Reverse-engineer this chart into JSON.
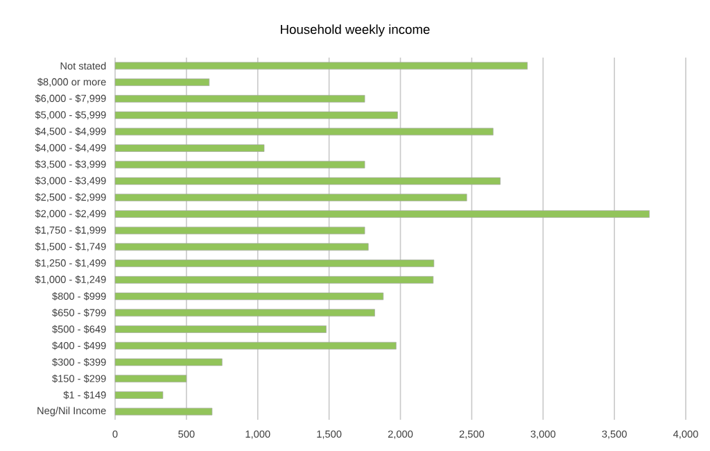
{
  "chart_data": {
    "type": "bar",
    "orientation": "horizontal",
    "title": "Household weekly income",
    "categories": [
      "Not stated",
      "$8,000 or more",
      "$6,000 - $7,999",
      "$5,000 - $5,999",
      "$4,500 - $4,999",
      "$4,000 - $4,499",
      "$3,500 - $3,999",
      "$3,000 - $3,499",
      "$2,500 - $2,999",
      "$2,000 - $2,499",
      "$1,750 - $1,999",
      "$1,500 - $1,749",
      "$1,250 - $1,499",
      "$1,000 - $1,249",
      "$800 - $999",
      "$650 - $799",
      "$500 - $649",
      "$400 - $499",
      "$300 - $399",
      "$150 - $299",
      "$1 - $149",
      "Neg/Nil Income"
    ],
    "values": [
      2890,
      660,
      1750,
      1980,
      2650,
      1045,
      1750,
      2700,
      2465,
      3745,
      1750,
      1775,
      2235,
      2230,
      1880,
      1820,
      1480,
      1970,
      750,
      500,
      335,
      680
    ],
    "color": "#92c45a",
    "xlim": [
      0,
      4000
    ],
    "xticks": [
      0,
      500,
      {
        "value": 1000,
        "label": "1,000"
      },
      {
        "value": 1500,
        "label": "1,500"
      },
      {
        "value": 2000,
        "label": "2,000"
      },
      {
        "value": 2500,
        "label": "2,500"
      },
      {
        "value": 3000,
        "label": "3,000"
      },
      {
        "value": 3500,
        "label": "3,500"
      },
      {
        "value": 4000,
        "label": "4,000"
      }
    ],
    "grid": "x"
  }
}
